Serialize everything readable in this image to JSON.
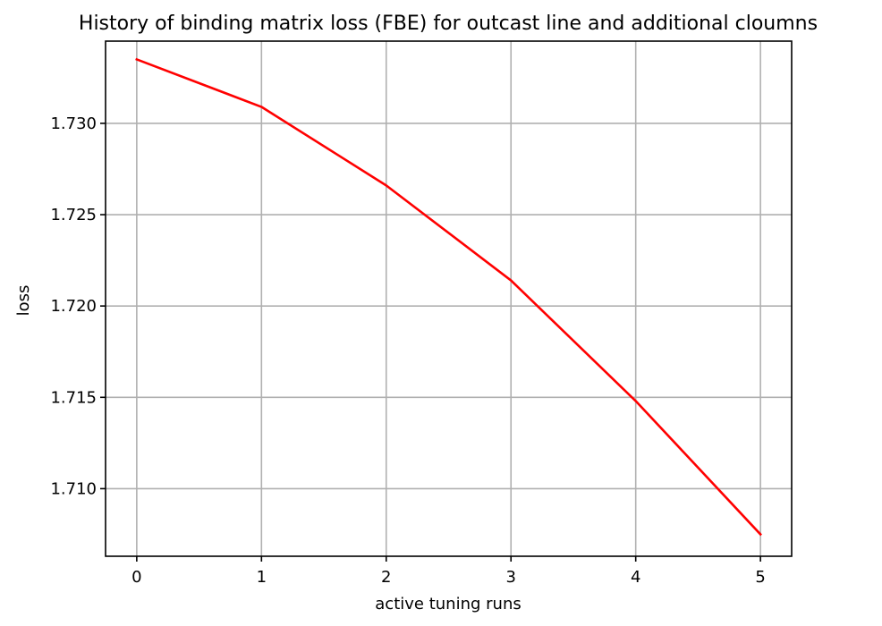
{
  "chart_data": {
    "type": "line",
    "title": "History of binding matrix loss (FBE) for outcast line and additional cloumns",
    "xlabel": "active tuning runs",
    "ylabel": "loss",
    "x": [
      0,
      1,
      2,
      3,
      4,
      5
    ],
    "x_ticks": [
      "0",
      "1",
      "2",
      "3",
      "4",
      "5"
    ],
    "y_ticks": [
      "1.710",
      "1.715",
      "1.720",
      "1.725",
      "1.730"
    ],
    "y_tick_values": [
      1.71,
      1.715,
      1.72,
      1.725,
      1.73
    ],
    "xlim": [
      -0.25,
      5.25
    ],
    "ylim": [
      1.7063,
      1.7345
    ],
    "grid": true,
    "series": [
      {
        "values": [
          1.7335,
          1.7309,
          1.7266,
          1.7214,
          1.7148,
          1.7075
        ],
        "color": "#ff0000"
      }
    ]
  }
}
